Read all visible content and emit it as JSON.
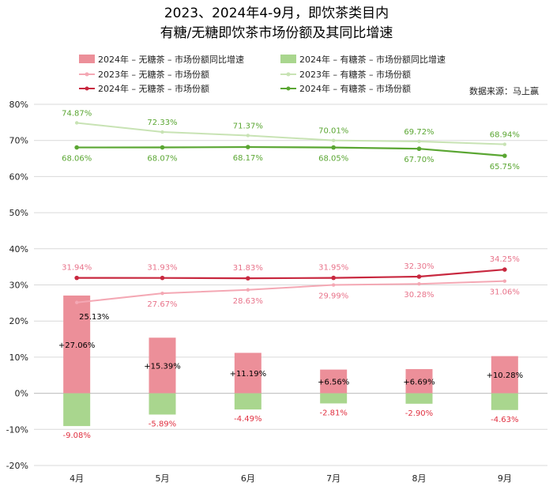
{
  "chart_data": {
    "type": "bar",
    "title_line1": "2023、2024年4-9月，即饮茶类目内",
    "title_line2": "有糖/无糖即饮茶市场份额及其同比增速",
    "source": "数据来源：马上赢",
    "categories": [
      "4月",
      "5月",
      "6月",
      "7月",
      "8月",
      "9月"
    ],
    "ylim": [
      -20,
      80
    ],
    "yticks": [
      "-20%",
      "-10%",
      "0%",
      "10%",
      "20%",
      "30%",
      "40%",
      "50%",
      "60%",
      "70%",
      "80%"
    ],
    "grid": true,
    "legend_position": "top",
    "series": [
      {
        "name": "2024年 – 无糖茶 – 市场份额同比增速",
        "kind": "bar",
        "color": "#ec8f99",
        "values": [
          27.06,
          15.39,
          11.19,
          6.56,
          6.69,
          10.28
        ],
        "labels": [
          "+27.06%",
          "+15.39%",
          "+11.19%",
          "+6.56%",
          "+6.69%",
          "+10.28%"
        ]
      },
      {
        "name": "2024年 – 有糖茶 – 市场份额同比增速",
        "kind": "bar",
        "color": "#a9d68e",
        "values": [
          -9.08,
          -5.89,
          -4.49,
          -2.81,
          -2.9,
          -4.63
        ],
        "labels": [
          "-9.08%",
          "-5.89%",
          "-4.49%",
          "-2.81%",
          "-2.90%",
          "-4.63%"
        ]
      },
      {
        "name": "2023年 – 无糖茶 – 市场份额",
        "kind": "line",
        "color": "#f4a8b4",
        "values": [
          25.13,
          27.67,
          28.63,
          29.99,
          30.28,
          31.06
        ],
        "labels": [
          "25.13%",
          "27.67%",
          "28.63%",
          "29.99%",
          "30.28%",
          "31.06%"
        ]
      },
      {
        "name": "2023年 – 有糖茶 – 市场份额",
        "kind": "line",
        "color": "#c8e3b4",
        "values": [
          74.87,
          72.33,
          71.37,
          70.01,
          69.72,
          68.94
        ],
        "labels": [
          "74.87%",
          "72.33%",
          "71.37%",
          "70.01%",
          "69.72%",
          "68.94%"
        ]
      },
      {
        "name": "2024年 – 无糖茶 – 市场份额",
        "kind": "line",
        "color": "#c8283f",
        "values": [
          31.94,
          31.93,
          31.83,
          31.95,
          32.3,
          34.25
        ],
        "labels": [
          "31.94%",
          "31.93%",
          "31.83%",
          "31.95%",
          "32.30%",
          "34.25%"
        ]
      },
      {
        "name": "2024年 – 有糖茶 – 市场份额",
        "kind": "line",
        "color": "#5aa632",
        "values": [
          68.06,
          68.07,
          68.17,
          68.05,
          67.7,
          65.75
        ],
        "labels": [
          "68.06%",
          "68.07%",
          "68.17%",
          "68.05%",
          "67.70%",
          "65.75%"
        ]
      }
    ],
    "label_colors": {
      "pink": "#e8738a",
      "green": "#5aa632",
      "red": "#e03040",
      "black": "#000000"
    }
  }
}
